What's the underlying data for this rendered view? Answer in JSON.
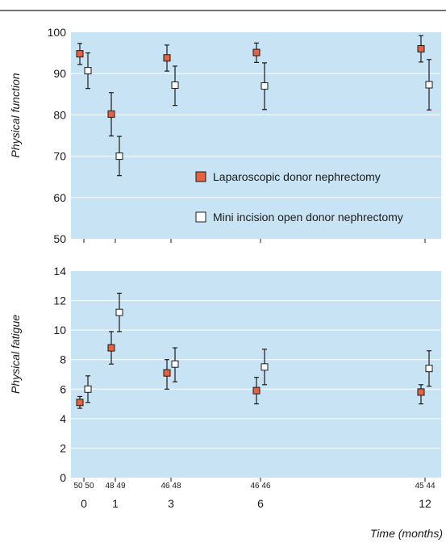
{
  "chart_data": [
    {
      "type": "scatter",
      "ylabel": "Physical function",
      "ylim": [
        50,
        100
      ],
      "yticks": [
        50,
        60,
        70,
        80,
        90,
        100
      ],
      "grid": true,
      "legend_placement": "bottom-right",
      "x": [
        0,
        1,
        3,
        6,
        12
      ],
      "series": [
        {
          "name": "Laparoscopic donor nephrectomy",
          "color": "#e8613f",
          "marker": "filled-square",
          "values": [
            94.8,
            80.2,
            93.8,
            95.1,
            96.0
          ],
          "lower": [
            92.2,
            74.9,
            90.6,
            92.7,
            92.8
          ],
          "upper": [
            97.3,
            85.4,
            96.9,
            97.4,
            99.2
          ]
        },
        {
          "name": "Mini incision open donor nephrectomy",
          "color": "#ffffff",
          "marker": "open-square",
          "values": [
            90.7,
            70.0,
            87.2,
            87.0,
            87.3
          ],
          "lower": [
            86.4,
            65.3,
            82.3,
            81.3,
            81.2
          ],
          "upper": [
            95.0,
            74.8,
            91.8,
            92.6,
            93.4
          ]
        }
      ]
    },
    {
      "type": "scatter",
      "ylabel": "Physical fatigue",
      "xlabel": "Time (months)",
      "ylim": [
        0,
        14
      ],
      "yticks": [
        0,
        2,
        4,
        6,
        8,
        10,
        12,
        14
      ],
      "grid": true,
      "x": [
        0,
        1,
        3,
        6,
        12
      ],
      "xtick_labels": [
        "0",
        "1",
        "3",
        "6",
        "12"
      ],
      "n_labels": [
        "50 50",
        "48 49",
        "46 48",
        "46 46",
        "45 44"
      ],
      "series": [
        {
          "name": "Laparoscopic donor nephrectomy",
          "values": [
            5.1,
            8.8,
            7.1,
            5.9,
            5.8
          ],
          "lower": [
            4.7,
            7.7,
            6.0,
            5.0,
            5.0
          ],
          "upper": [
            5.5,
            9.9,
            8.0,
            6.8,
            6.3
          ]
        },
        {
          "name": "Mini incision open donor nephrectomy",
          "values": [
            6.0,
            11.2,
            7.7,
            7.5,
            7.4
          ],
          "lower": [
            5.1,
            9.9,
            6.5,
            6.3,
            6.2
          ],
          "upper": [
            6.9,
            12.5,
            8.8,
            8.7,
            8.6
          ]
        }
      ]
    }
  ],
  "colors": {
    "plot_background": "#c8e4f4",
    "gridline": "#ffffff",
    "laparoscopic_marker": "#e8613f",
    "open_marker": "#ffffff",
    "error_bar": "#1a1a1a"
  }
}
